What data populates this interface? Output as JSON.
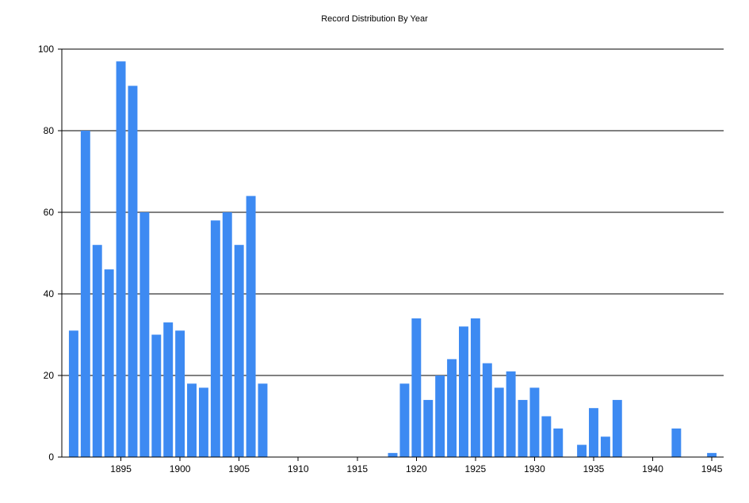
{
  "chart_data": {
    "type": "bar",
    "title": "Record Distribution By Year",
    "xlabel": "",
    "ylabel": "",
    "ylim": [
      0,
      100
    ],
    "xlim": [
      1890,
      1946
    ],
    "yticks": [
      0,
      20,
      40,
      60,
      80,
      100
    ],
    "xticks": [
      1895,
      1900,
      1905,
      1910,
      1915,
      1920,
      1925,
      1930,
      1935,
      1940,
      1945
    ],
    "grid": "horizontal",
    "legend": "none",
    "bar_color": "#3d8af2",
    "x": [
      1891,
      1892,
      1893,
      1894,
      1895,
      1896,
      1897,
      1898,
      1899,
      1900,
      1901,
      1902,
      1903,
      1904,
      1905,
      1906,
      1907,
      1918,
      1919,
      1920,
      1921,
      1922,
      1923,
      1924,
      1925,
      1926,
      1927,
      1928,
      1929,
      1930,
      1931,
      1932,
      1934,
      1935,
      1936,
      1937,
      1942,
      1945
    ],
    "values": [
      31,
      80,
      52,
      46,
      97,
      91,
      60,
      30,
      33,
      31,
      18,
      17,
      58,
      60,
      52,
      64,
      18,
      1,
      18,
      34,
      14,
      20,
      24,
      32,
      34,
      23,
      17,
      21,
      14,
      17,
      10,
      7,
      3,
      12,
      5,
      14,
      7,
      1
    ]
  }
}
